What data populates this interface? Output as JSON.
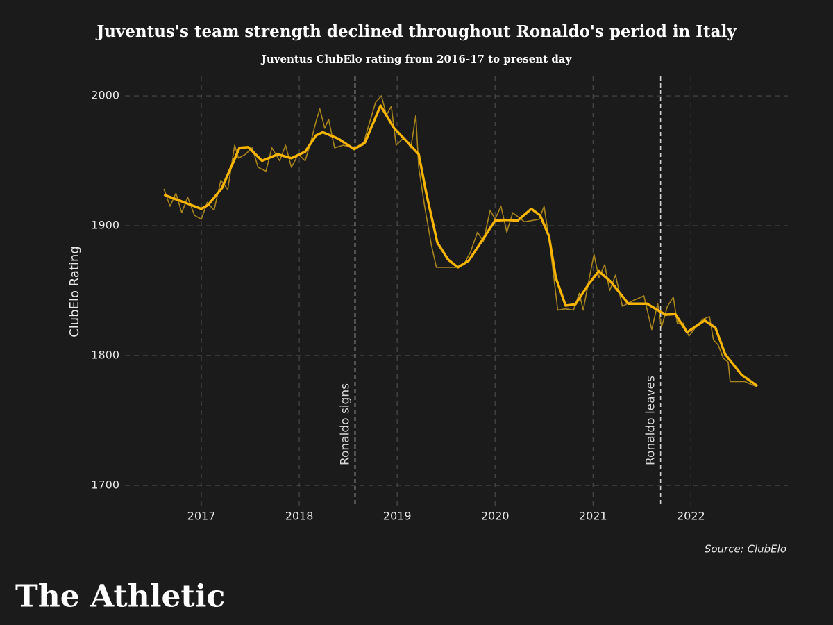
{
  "chart_data": {
    "type": "line",
    "title": "Juventus's team strength declined throughout Ronaldo's period in Italy",
    "subtitle": "Juventus ClubElo rating from 2016-17 to present day",
    "y_label": "ClubElo Rating",
    "source": "Source: ClubElo",
    "brand": "The Athletic",
    "xlim": [
      2016.22,
      2022.99
    ],
    "ylim": [
      1684.5,
      2015
    ],
    "xticks": [
      2017,
      2018,
      2019,
      2020,
      2021,
      2022
    ],
    "yticks": [
      1700,
      1800,
      1900,
      2000
    ],
    "grid": true,
    "annotations": [
      {
        "x": 2018.57,
        "label": "Ronaldo signs"
      },
      {
        "x": 2021.69,
        "label": "Ronaldo leaves"
      }
    ],
    "series": [
      {
        "color": "#a8841c",
        "width": 1.6,
        "x": [
          2016.62,
          2016.68,
          2016.74,
          2016.8,
          2016.86,
          2016.93,
          2017.0,
          2017.06,
          2017.13,
          2017.2,
          2017.27,
          2017.34,
          2017.38,
          2017.45,
          2017.52,
          2017.58,
          2017.66,
          2017.72,
          2017.8,
          2017.86,
          2017.92,
          2017.99,
          2018.06,
          2018.12,
          2018.17,
          2018.21,
          2018.26,
          2018.3,
          2018.36,
          2018.45,
          2018.55,
          2018.65,
          2018.72,
          2018.78,
          2018.84,
          2018.89,
          2018.94,
          2018.99,
          2019.07,
          2019.14,
          2019.19,
          2019.22,
          2019.28,
          2019.35,
          2019.4,
          2019.6,
          2019.68,
          2019.75,
          2019.82,
          2019.88,
          2019.95,
          2020.0,
          2020.06,
          2020.12,
          2020.18,
          2020.3,
          2020.45,
          2020.5,
          2020.56,
          2020.6,
          2020.64,
          2020.72,
          2020.8,
          2020.86,
          2020.9,
          2020.95,
          2021.01,
          2021.06,
          2021.12,
          2021.17,
          2021.23,
          2021.3,
          2021.4,
          2021.52,
          2021.6,
          2021.66,
          2021.7,
          2021.76,
          2021.82,
          2021.86,
          2021.92,
          2021.98,
          2022.05,
          2022.12,
          2022.19,
          2022.23,
          2022.28,
          2022.33,
          2022.38,
          2022.4,
          2022.55,
          2022.67
        ],
        "values": [
          1928,
          1915,
          1925,
          1910,
          1922,
          1908,
          1905,
          1918,
          1912,
          1935,
          1928,
          1962,
          1952,
          1955,
          1960,
          1945,
          1942,
          1960,
          1950,
          1962,
          1945,
          1955,
          1950,
          1965,
          1980,
          1990,
          1975,
          1982,
          1960,
          1962,
          1960,
          1962,
          1980,
          1995,
          2000,
          1985,
          1992,
          1962,
          1968,
          1960,
          1985,
          1945,
          1915,
          1885,
          1868,
          1868,
          1870,
          1880,
          1895,
          1888,
          1912,
          1905,
          1915,
          1895,
          1910,
          1903,
          1905,
          1915,
          1885,
          1860,
          1835,
          1836,
          1835,
          1848,
          1835,
          1855,
          1878,
          1860,
          1870,
          1850,
          1862,
          1838,
          1842,
          1846,
          1820,
          1840,
          1822,
          1838,
          1845,
          1825,
          1825,
          1815,
          1822,
          1828,
          1830,
          1812,
          1808,
          1798,
          1795,
          1780,
          1780,
          1776
        ]
      },
      {
        "color": "#f7b500",
        "width": 3.5,
        "x": [
          2016.63,
          2016.79,
          2017.0,
          2017.07,
          2017.21,
          2017.32,
          2017.39,
          2017.48,
          2017.62,
          2017.78,
          2017.92,
          2018.06,
          2018.17,
          2018.24,
          2018.4,
          2018.56,
          2018.67,
          2018.83,
          2018.97,
          2019.11,
          2019.22,
          2019.3,
          2019.41,
          2019.52,
          2019.62,
          2019.73,
          2019.87,
          2020.0,
          2020.12,
          2020.23,
          2020.37,
          2020.46,
          2020.55,
          2020.62,
          2020.72,
          2020.82,
          2020.96,
          2021.06,
          2021.18,
          2021.36,
          2021.55,
          2021.74,
          2021.84,
          2021.96,
          2022.14,
          2022.25,
          2022.35,
          2022.52,
          2022.67
        ],
        "values": [
          1923.5,
          1919,
          1913,
          1916,
          1929,
          1948,
          1960,
          1960.5,
          1950,
          1955,
          1952,
          1957,
          1969.5,
          1972,
          1967,
          1959,
          1964,
          1992.5,
          1975,
          1964,
          1955,
          1924,
          1887,
          1874,
          1868,
          1873,
          1889,
          1904,
          1904.5,
          1904,
          1913,
          1908,
          1892,
          1860,
          1838.5,
          1839.5,
          1855.5,
          1865,
          1857,
          1840,
          1840,
          1831.5,
          1832,
          1818,
          1827,
          1821.5,
          1801,
          1785,
          1777
        ]
      }
    ]
  }
}
